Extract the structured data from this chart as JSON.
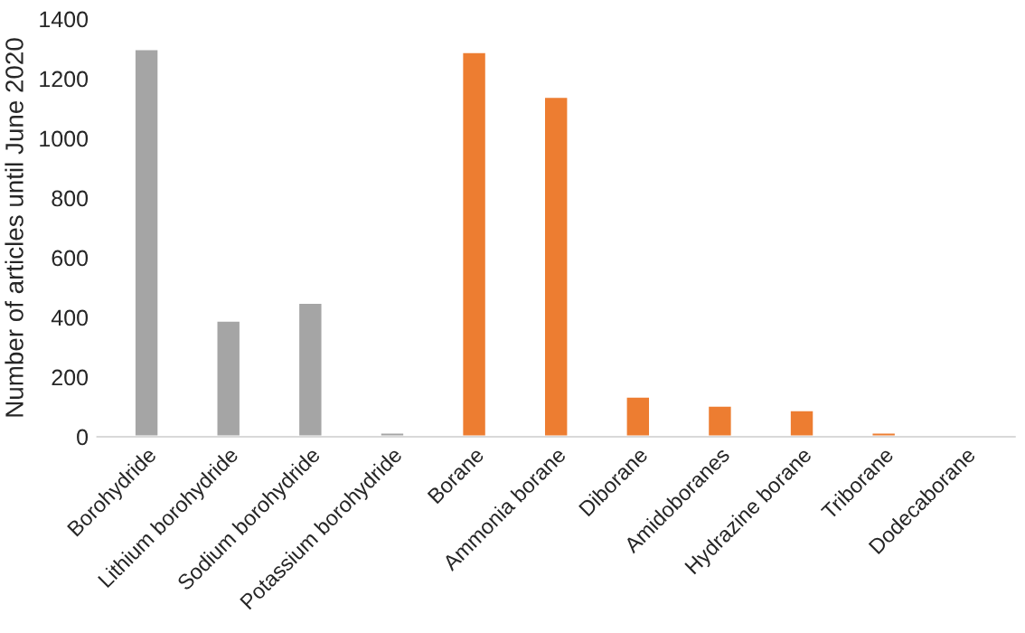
{
  "chart_data": {
    "type": "bar",
    "ylabel": "Number of articles until June 2020",
    "categories": [
      "Borohydride",
      "Lithium borohydride",
      "Sodium borohydride",
      "Potassium borohydride",
      "Borane",
      "Ammonia borane",
      "Diborane",
      "Amidoboranes",
      "Hydrazine borane",
      "Triborane",
      "Dodecaborane"
    ],
    "values": [
      1300,
      390,
      450,
      15,
      1290,
      1140,
      135,
      105,
      90,
      15,
      null
    ],
    "colors": [
      "#a5a5a5",
      "#a5a5a5",
      "#a5a5a5",
      "#a5a5a5",
      "#ed7d31",
      "#ed7d31",
      "#ed7d31",
      "#ed7d31",
      "#ed7d31",
      "#ed7d31",
      "#ed7d31"
    ],
    "ylim": [
      0,
      1400
    ],
    "yticks": [
      0,
      200,
      400,
      600,
      800,
      1000,
      1200,
      1400
    ],
    "grid": false,
    "legend": false
  }
}
